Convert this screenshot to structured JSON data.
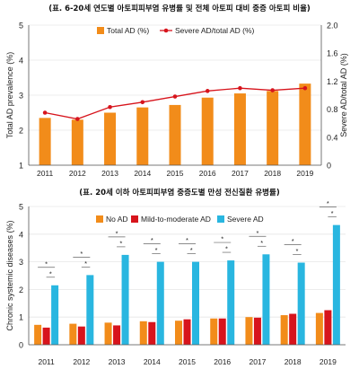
{
  "captions": {
    "top": "(표. 6-20세 연도별 아토피피부염 유병률 및 전체 아토피 대비 중증 아토피 비율)",
    "bottom": "(표. 20세 이하 아토피피부염 중증도별 만성 전신질환 유병률)"
  },
  "colors": {
    "orange": "#F28C1A",
    "red": "#D7141C",
    "cyan": "#29B6E0",
    "axis": "#555555",
    "grid": "#e6e6e6",
    "sig": "#666666"
  },
  "chart_data": [
    {
      "type": "bar",
      "categories": [
        "2011",
        "2012",
        "2013",
        "2014",
        "2015",
        "2016",
        "2017",
        "2018",
        "2019"
      ],
      "series": [
        {
          "name": "Total AD (%)",
          "axis": "left",
          "kind": "bar",
          "color": "#F28C1A",
          "values": [
            2.35,
            2.3,
            2.5,
            2.65,
            2.72,
            2.93,
            3.05,
            3.12,
            3.33
          ]
        },
        {
          "name": "Severe AD/total AD (%)",
          "axis": "right",
          "kind": "line",
          "color": "#D7141C",
          "values": [
            0.75,
            0.66,
            0.83,
            0.9,
            0.98,
            1.06,
            1.1,
            1.07,
            1.1
          ]
        }
      ],
      "ylabel": "Total AD prevalence (%)",
      "ylabel_right": "Severe AD/total AD (%)",
      "ylim": [
        1,
        5
      ],
      "yticks": [
        1,
        2,
        3,
        4,
        5
      ],
      "ylim_right": [
        0,
        2.0
      ],
      "yticks_right": [
        "0",
        "0.4",
        "0.8",
        "1.2",
        "1.6",
        "2.0"
      ],
      "legend_position": "top-right",
      "grid": true
    },
    {
      "type": "bar",
      "categories": [
        "2011",
        "2012",
        "2013",
        "2014",
        "2015",
        "2016",
        "2017",
        "2018",
        "2019"
      ],
      "series": [
        {
          "name": "No AD",
          "color": "#F28C1A",
          "values": [
            0.72,
            0.76,
            0.8,
            0.85,
            0.87,
            0.95,
            1.0,
            1.07,
            1.15
          ]
        },
        {
          "name": "Mild-to-moderate AD",
          "color": "#D7141C",
          "values": [
            0.62,
            0.66,
            0.7,
            0.82,
            0.92,
            0.95,
            0.98,
            1.12,
            1.25
          ]
        },
        {
          "name": "Severe AD",
          "color": "#29B6E0",
          "values": [
            2.15,
            2.52,
            3.25,
            3.0,
            3.0,
            3.05,
            3.27,
            2.97,
            4.33
          ]
        }
      ],
      "ylabel": "Chronic systemic diseases (%)",
      "ylim": [
        0,
        5
      ],
      "yticks": [
        0,
        1,
        2,
        3,
        4,
        5
      ],
      "legend_position": "top",
      "significance_marker": "*"
    }
  ]
}
